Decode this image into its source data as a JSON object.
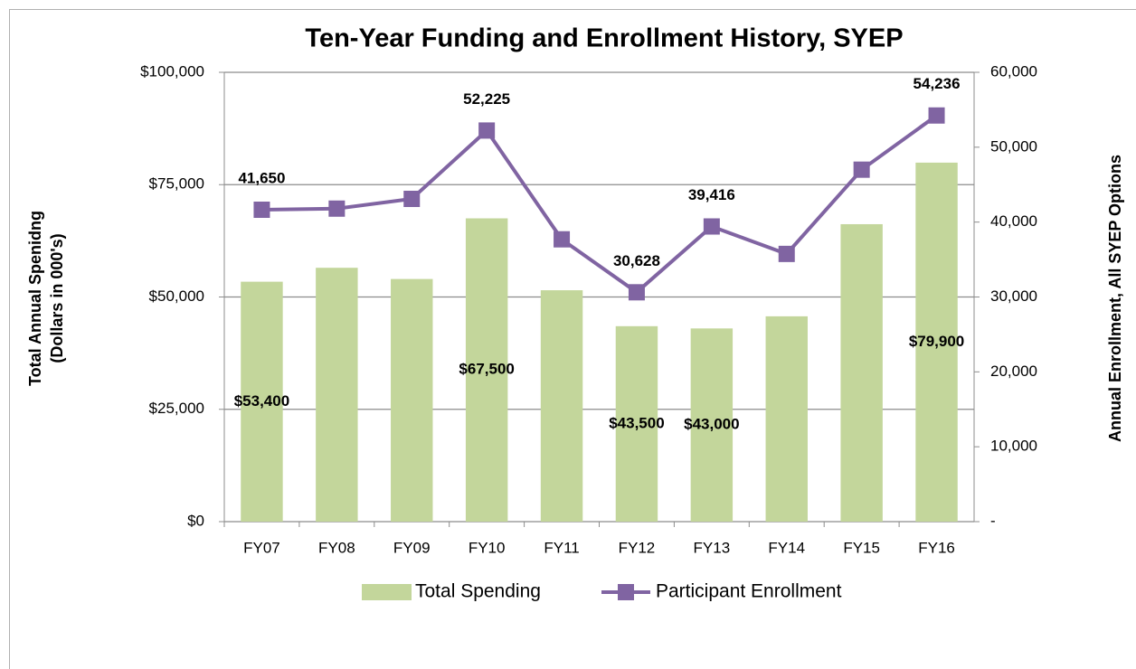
{
  "chart_data": {
    "type": "bar_line",
    "title": "Ten-Year Funding and Enrollment History, SYEP",
    "y_label": [
      "Total Annual Spenidng",
      "(Dollars in 000's)"
    ],
    "y2_label": "Annual Enrollment, All SYEP Options",
    "categories": [
      "FY07",
      "FY08",
      "FY09",
      "FY10",
      "FY11",
      "FY12",
      "FY13",
      "FY14",
      "FY15",
      "FY16"
    ],
    "series": [
      {
        "name": "Total Spending",
        "type": "bar",
        "color": "#c3d69b",
        "values": [
          53400,
          56500,
          54000,
          67500,
          51500,
          43500,
          43000,
          45700,
          66200,
          79900
        ],
        "value_labels": [
          "$53,400",
          null,
          null,
          "$67,500",
          null,
          "$43,500",
          "$43,000",
          null,
          null,
          "$79,900"
        ]
      },
      {
        "name": "Participant Enrollment",
        "type": "line",
        "axis": "y2",
        "color": "#8064a2",
        "values": [
          41650,
          41800,
          43100,
          52225,
          37700,
          30628,
          39416,
          35750,
          47000,
          54236
        ],
        "value_labels": [
          "41,650",
          null,
          null,
          "52,225",
          null,
          "30,628",
          "39,416",
          null,
          null,
          "54,236"
        ]
      }
    ],
    "ylim": [
      0,
      100000
    ],
    "yticks": [
      {
        "value": 0,
        "label": "$0"
      },
      {
        "value": 25000,
        "label": "$25,000"
      },
      {
        "value": 50000,
        "label": "$50,000"
      },
      {
        "value": 75000,
        "label": "$75,000"
      },
      {
        "value": 100000,
        "label": "$100,000"
      }
    ],
    "y2lim": [
      0,
      60000
    ],
    "y2ticks": [
      {
        "value": 0,
        "label": "-"
      },
      {
        "value": 10000,
        "label": "10,000"
      },
      {
        "value": 20000,
        "label": "20,000"
      },
      {
        "value": 30000,
        "label": "30,000"
      },
      {
        "value": 40000,
        "label": "40,000"
      },
      {
        "value": 50000,
        "label": "50,000"
      },
      {
        "value": 60000,
        "label": "60,000"
      }
    ],
    "grid": true,
    "legend": "bottom"
  }
}
